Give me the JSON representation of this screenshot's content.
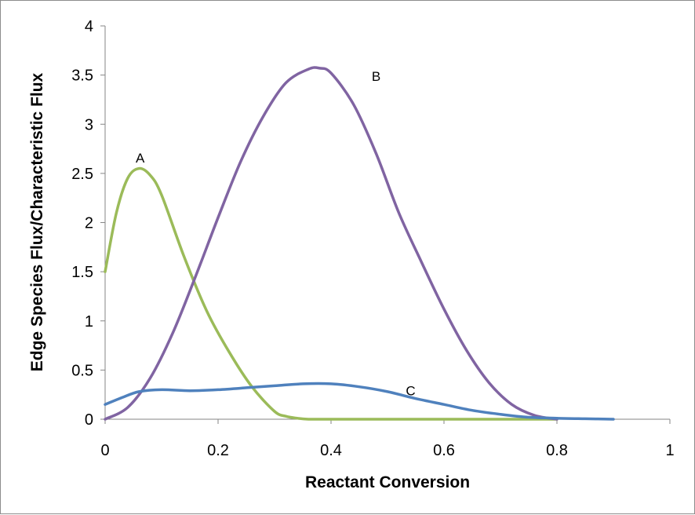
{
  "chart_data": {
    "type": "line",
    "xlabel": "Reactant Conversion",
    "ylabel": "Edge Species Flux/Characteristic Flux",
    "xlim": [
      0,
      1
    ],
    "ylim": [
      0,
      4
    ],
    "x_ticks": [
      "0",
      "0.2",
      "0.4",
      "0.6",
      "0.8",
      "1"
    ],
    "y_ticks": [
      "0",
      "0.5",
      "1",
      "1.5",
      "2",
      "2.5",
      "3",
      "3.5",
      "4"
    ],
    "grid": false,
    "legend": "none",
    "series": [
      {
        "name": "A",
        "color": "#9BBB59",
        "x": [
          0,
          0.02,
          0.04,
          0.06,
          0.08,
          0.1,
          0.14,
          0.18,
          0.22,
          0.26,
          0.3,
          0.32,
          0.34,
          0.36,
          0.4,
          0.5,
          0.6,
          0.7,
          0.8
        ],
        "y": [
          1.5,
          2.1,
          2.45,
          2.55,
          2.48,
          2.28,
          1.65,
          1.1,
          0.68,
          0.33,
          0.08,
          0.03,
          0.01,
          0,
          0,
          0,
          0,
          0,
          0
        ]
      },
      {
        "name": "B",
        "color": "#8064A2",
        "x": [
          0,
          0.04,
          0.08,
          0.12,
          0.16,
          0.2,
          0.24,
          0.28,
          0.32,
          0.36,
          0.38,
          0.4,
          0.44,
          0.48,
          0.52,
          0.56,
          0.6,
          0.64,
          0.68,
          0.72,
          0.76,
          0.8
        ],
        "y": [
          0,
          0.12,
          0.42,
          0.88,
          1.45,
          2.05,
          2.62,
          3.08,
          3.42,
          3.56,
          3.57,
          3.52,
          3.2,
          2.7,
          2.1,
          1.6,
          1.12,
          0.7,
          0.37,
          0.15,
          0.04,
          0
        ]
      },
      {
        "name": "C",
        "color": "#4F81BD",
        "x": [
          0,
          0.03,
          0.06,
          0.1,
          0.15,
          0.2,
          0.25,
          0.3,
          0.35,
          0.4,
          0.45,
          0.5,
          0.55,
          0.6,
          0.65,
          0.7,
          0.75,
          0.8,
          0.85,
          0.9
        ],
        "y": [
          0.15,
          0.22,
          0.28,
          0.3,
          0.29,
          0.3,
          0.32,
          0.34,
          0.36,
          0.36,
          0.33,
          0.28,
          0.21,
          0.15,
          0.09,
          0.05,
          0.02,
          0.01,
          0.005,
          0
        ]
      }
    ],
    "annotations": [
      {
        "text": "A",
        "x": 0.062,
        "y": 2.66
      },
      {
        "text": "B",
        "x": 0.48,
        "y": 3.49
      },
      {
        "text": "C",
        "x": 0.541,
        "y": 0.29
      }
    ]
  }
}
